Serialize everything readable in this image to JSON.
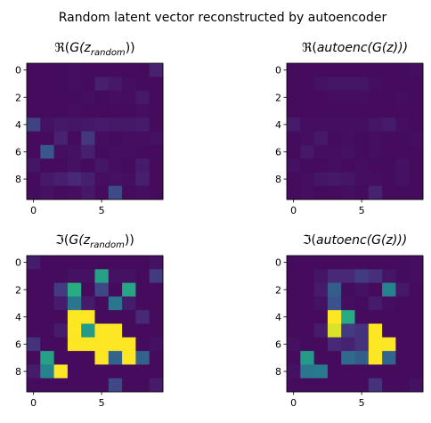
{
  "figure": {
    "suptitle": "Random latent vector reconstructed by autoencoder"
  },
  "chart_data": [
    {
      "type": "heatmap",
      "title": "ℜ(G(z_random))",
      "title_parts": {
        "prefix": "ℜ(",
        "main": "G(z",
        "sub": "random",
        "suffix": "))"
      },
      "x_ticks": [
        0,
        5
      ],
      "y_ticks": [
        0,
        2,
        4,
        6,
        8
      ],
      "colormap": "viridis",
      "vmin": 0,
      "vmax": 1,
      "values": [
        [
          0.03,
          0.03,
          0.03,
          0.04,
          0.03,
          0.03,
          0.03,
          0.03,
          0.03,
          0.1
        ],
        [
          0.03,
          0.03,
          0.03,
          0.04,
          0.03,
          0.09,
          0.07,
          0.04,
          0.03,
          0.03
        ],
        [
          0.03,
          0.03,
          0.03,
          0.03,
          0.04,
          0.03,
          0.04,
          0.04,
          0.07,
          0.03
        ],
        [
          0.03,
          0.03,
          0.03,
          0.04,
          0.03,
          0.03,
          0.03,
          0.03,
          0.04,
          0.03
        ],
        [
          0.2,
          0.05,
          0.07,
          0.06,
          0.07,
          0.08,
          0.07,
          0.07,
          0.08,
          0.03
        ],
        [
          0.03,
          0.03,
          0.1,
          0.03,
          0.17,
          0.04,
          0.03,
          0.04,
          0.04,
          0.05
        ],
        [
          0.03,
          0.28,
          0.04,
          0.05,
          0.09,
          0.03,
          0.04,
          0.04,
          0.03,
          0.03
        ],
        [
          0.06,
          0.03,
          0.03,
          0.05,
          0.03,
          0.06,
          0.04,
          0.03,
          0.08,
          0.03
        ],
        [
          0.03,
          0.07,
          0.09,
          0.12,
          0.09,
          0.04,
          0.05,
          0.04,
          0.09,
          0.03
        ],
        [
          0.03,
          0.05,
          0.03,
          0.04,
          0.07,
          0.03,
          0.23,
          0.03,
          0.04,
          0.03
        ]
      ]
    },
    {
      "type": "heatmap",
      "title": "ℜ(autoenc(G(z)))",
      "title_parts": {
        "prefix": "ℜ(",
        "main": "autoenc(G(z)))",
        "sub": "",
        "suffix": ""
      },
      "x_ticks": [
        0,
        5
      ],
      "y_ticks": [
        0,
        2,
        4,
        6,
        8
      ],
      "colormap": "viridis",
      "vmin": 0,
      "vmax": 1,
      "values": [
        [
          0.03,
          0.03,
          0.03,
          0.03,
          0.03,
          0.03,
          0.03,
          0.03,
          0.03,
          0.04
        ],
        [
          0.03,
          0.03,
          0.05,
          0.06,
          0.06,
          0.06,
          0.04,
          0.03,
          0.03,
          0.03
        ],
        [
          0.03,
          0.03,
          0.03,
          0.04,
          0.04,
          0.04,
          0.03,
          0.03,
          0.04,
          0.03
        ],
        [
          0.03,
          0.03,
          0.03,
          0.03,
          0.03,
          0.03,
          0.03,
          0.03,
          0.03,
          0.03
        ],
        [
          0.08,
          0.04,
          0.04,
          0.04,
          0.04,
          0.04,
          0.06,
          0.08,
          0.04,
          0.03
        ],
        [
          0.03,
          0.04,
          0.07,
          0.03,
          0.04,
          0.03,
          0.04,
          0.03,
          0.03,
          0.04
        ],
        [
          0.03,
          0.07,
          0.04,
          0.04,
          0.05,
          0.03,
          0.04,
          0.03,
          0.03,
          0.03
        ],
        [
          0.05,
          0.03,
          0.03,
          0.04,
          0.03,
          0.04,
          0.03,
          0.03,
          0.05,
          0.03
        ],
        [
          0.03,
          0.04,
          0.06,
          0.07,
          0.06,
          0.04,
          0.04,
          0.03,
          0.05,
          0.03
        ],
        [
          0.03,
          0.04,
          0.03,
          0.03,
          0.04,
          0.03,
          0.1,
          0.03,
          0.03,
          0.03
        ]
      ]
    },
    {
      "type": "heatmap",
      "title": "ℑ(G(z_random))",
      "title_parts": {
        "prefix": "ℑ(",
        "main": "G(z",
        "sub": "random",
        "suffix": "))"
      },
      "x_ticks": [
        0,
        5
      ],
      "y_ticks": [
        0,
        2,
        4,
        6,
        8
      ],
      "colormap": "viridis",
      "vmin": 0,
      "vmax": 1,
      "values": [
        [
          0.08,
          0.03,
          0.03,
          0.03,
          0.03,
          0.03,
          0.03,
          0.03,
          0.03,
          0.05
        ],
        [
          0.03,
          0.03,
          0.03,
          0.05,
          0.05,
          0.58,
          0.05,
          0.05,
          0.03,
          0.18
        ],
        [
          0.03,
          0.03,
          0.18,
          0.63,
          0.03,
          0.22,
          0.03,
          0.6,
          0.03,
          0.03
        ],
        [
          0.03,
          0.03,
          0.08,
          0.4,
          0.08,
          0.03,
          0.4,
          0.08,
          0.03,
          0.03
        ],
        [
          0.03,
          0.03,
          0.03,
          1.0,
          1.0,
          0.03,
          0.03,
          0.03,
          0.12,
          0.03
        ],
        [
          0.03,
          0.03,
          0.08,
          1.0,
          0.55,
          1.0,
          1.0,
          0.03,
          0.03,
          0.03
        ],
        [
          0.15,
          0.03,
          0.03,
          1.0,
          1.0,
          1.0,
          1.0,
          1.0,
          0.03,
          0.05
        ],
        [
          0.03,
          0.58,
          0.03,
          0.03,
          0.03,
          1.0,
          0.32,
          1.0,
          0.32,
          0.03
        ],
        [
          0.08,
          0.45,
          1.0,
          0.03,
          0.03,
          0.03,
          0.03,
          0.03,
          0.03,
          0.03
        ],
        [
          0.03,
          0.03,
          0.03,
          0.03,
          0.03,
          0.03,
          0.22,
          0.03,
          0.03,
          0.08
        ]
      ]
    },
    {
      "type": "heatmap",
      "title": "ℑ(autoenc(G(z)))",
      "title_parts": {
        "prefix": "ℑ(",
        "main": "autoenc(G(z)))",
        "sub": "",
        "suffix": ""
      },
      "x_ticks": [
        0,
        5
      ],
      "y_ticks": [
        0,
        2,
        4,
        6,
        8
      ],
      "colormap": "viridis",
      "vmin": 0,
      "vmax": 1,
      "values": [
        [
          0.03,
          0.03,
          0.03,
          0.03,
          0.03,
          0.03,
          0.03,
          0.03,
          0.03,
          0.04
        ],
        [
          0.03,
          0.03,
          0.06,
          0.12,
          0.12,
          0.18,
          0.14,
          0.06,
          0.03,
          0.04
        ],
        [
          0.03,
          0.03,
          0.08,
          0.3,
          0.03,
          0.05,
          0.03,
          0.45,
          0.07,
          0.03
        ],
        [
          0.03,
          0.03,
          0.05,
          0.25,
          0.04,
          0.03,
          0.08,
          0.04,
          0.03,
          0.03
        ],
        [
          0.03,
          0.03,
          0.03,
          1.0,
          0.62,
          0.03,
          0.03,
          0.03,
          0.03,
          0.03
        ],
        [
          0.03,
          0.03,
          0.08,
          0.95,
          0.18,
          0.15,
          1.0,
          0.03,
          0.03,
          0.03
        ],
        [
          0.05,
          0.03,
          0.03,
          0.12,
          0.1,
          0.15,
          1.0,
          1.0,
          0.03,
          0.03
        ],
        [
          0.03,
          0.55,
          0.03,
          0.03,
          0.35,
          0.3,
          1.0,
          0.33,
          0.03,
          0.03
        ],
        [
          0.05,
          0.4,
          0.42,
          0.03,
          0.03,
          0.03,
          0.03,
          0.03,
          0.03,
          0.03
        ],
        [
          0.03,
          0.03,
          0.03,
          0.03,
          0.03,
          0.03,
          0.15,
          0.03,
          0.03,
          0.05
        ]
      ]
    }
  ]
}
